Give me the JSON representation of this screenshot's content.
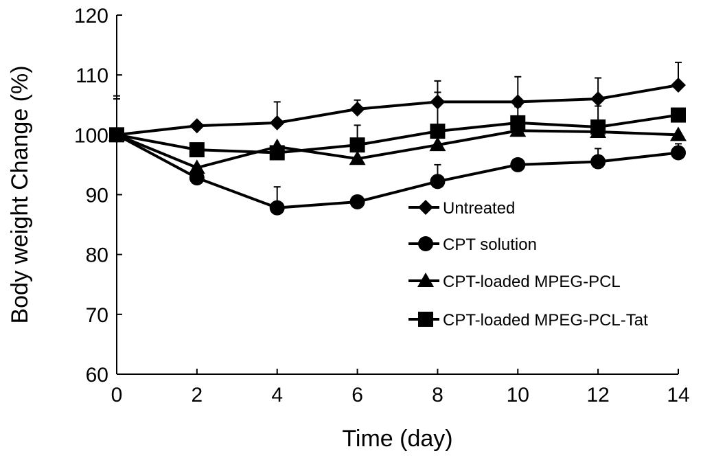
{
  "chart_data": {
    "type": "line",
    "xlabel": "Time (day)",
    "ylabel": "Body weight Change (%)",
    "xlim": [
      0,
      14
    ],
    "ylim": [
      60,
      120
    ],
    "xticks": [
      "0",
      "2",
      "4",
      "6",
      "8",
      "10",
      "12",
      "14"
    ],
    "yticks": [
      "60",
      "70",
      "80",
      "90",
      "100",
      "110",
      "120"
    ],
    "grid": false,
    "legend_position": "center-right",
    "x": [
      0,
      2,
      4,
      6,
      8,
      10,
      12,
      14
    ],
    "series": [
      {
        "name": "Untreated",
        "marker": "diamond",
        "values": [
          100,
          101.5,
          102,
          104.3,
          105.5,
          105.5,
          106,
          108.3
        ],
        "error": [
          6.5,
          0,
          3.5,
          1.5,
          3.5,
          4.2,
          3.5,
          3.8
        ]
      },
      {
        "name": "CPT solution",
        "marker": "circle",
        "values": [
          100,
          92.8,
          87.8,
          88.8,
          92.2,
          95,
          95.5,
          97
        ],
        "error": [
          0,
          0,
          3.5,
          0,
          2.8,
          0,
          2.2,
          1.5
        ]
      },
      {
        "name": "CPT-loaded MPEG-PCL",
        "marker": "triangle",
        "values": [
          100,
          94.5,
          98,
          96,
          98.3,
          100.7,
          100.5,
          100
        ],
        "error": [
          0,
          0,
          0,
          0,
          0,
          0,
          0,
          0
        ]
      },
      {
        "name": "CPT-loaded MPEG-PCL-Tat",
        "marker": "square",
        "values": [
          100,
          97.5,
          97,
          98.3,
          100.6,
          102,
          101.3,
          103.3
        ],
        "error": [
          6,
          0,
          0,
          3.3,
          6.5,
          2.7,
          3.5,
          0
        ]
      }
    ]
  }
}
